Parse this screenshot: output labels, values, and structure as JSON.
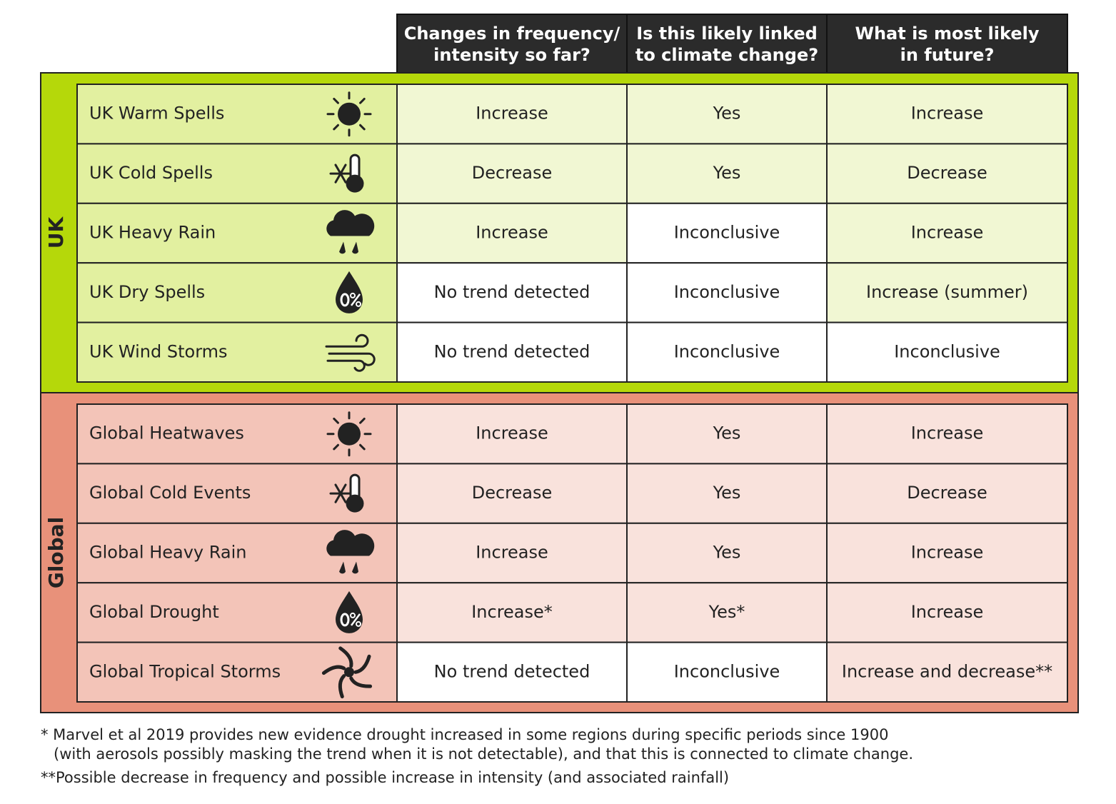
{
  "headers": [
    [
      "Changes in frequency/",
      "intensity so far?"
    ],
    [
      "Is this likely linked",
      "to climate change?"
    ],
    [
      "What is most likely",
      "in future?"
    ]
  ],
  "groups": [
    {
      "label": "UK",
      "rows": [
        {
          "name": "UK Warm Spells",
          "cells": [
            "Increase",
            "Yes",
            "Increase"
          ]
        },
        {
          "name": "UK Cold Spells",
          "cells": [
            "Decrease",
            "Yes",
            "Decrease"
          ]
        },
        {
          "name": "UK Heavy Rain",
          "cells": [
            "Increase",
            "Inconclusive",
            "Increase"
          ]
        },
        {
          "name": "UK Dry Spells",
          "cells": [
            "No trend detected",
            "Inconclusive",
            "Increase (summer)"
          ]
        },
        {
          "name": "UK Wind Storms",
          "cells": [
            "No trend detected",
            "Inconclusive",
            "Inconclusive"
          ]
        }
      ]
    },
    {
      "label": "Global",
      "rows": [
        {
          "name": "Global Heatwaves",
          "cells": [
            "Increase",
            "Yes",
            "Increase"
          ]
        },
        {
          "name": "Global Cold Events",
          "cells": [
            "Decrease",
            "Yes",
            "Decrease"
          ]
        },
        {
          "name": "Global Heavy Rain",
          "cells": [
            "Increase",
            "Yes",
            "Increase"
          ]
        },
        {
          "name": "Global Drought",
          "cells": [
            "Increase*",
            "Yes*",
            "Increase"
          ]
        },
        {
          "name": "Global Tropical Storms",
          "cells": [
            "No trend detected",
            "Inconclusive",
            "Increase and decrease**"
          ]
        }
      ]
    }
  ],
  "footnotes": [
    [
      "* Marvel et al 2019 provides new evidence drought increased in some regions during specific periods since 1900",
      "(with aerosols possibly masking the trend when it is not detectable), and that this is connected to climate change."
    ],
    [
      "**Possible decrease in frequency and possible increase in intensity (and associated rainfall)"
    ]
  ]
}
